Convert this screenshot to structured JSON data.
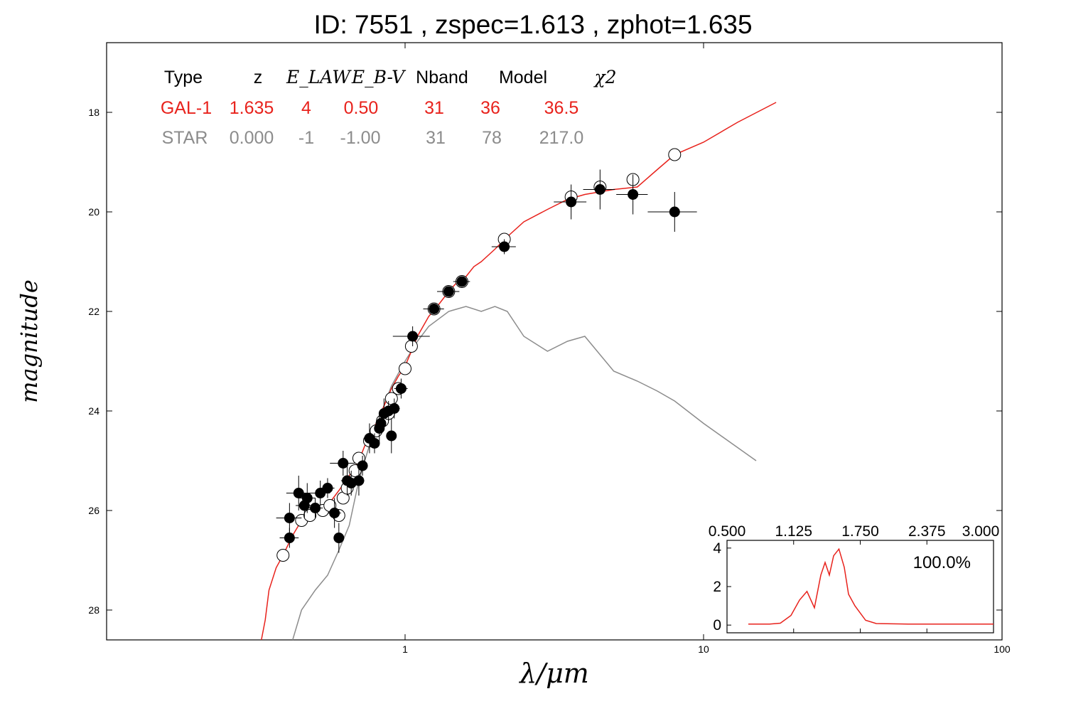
{
  "title": "ID:  7551  , zspec=1.613 , zphot=1.635",
  "colors": {
    "galaxy_model": "#e8221c",
    "star_model": "#8c8c8c",
    "data_point": "#000000",
    "model_point": "#ffffff"
  },
  "chart_data": {
    "type": "scatter",
    "xlabel": "λ/μm",
    "ylabel": "magnitude",
    "xscale": "log",
    "xlim": [
      0.1,
      100
    ],
    "ylim": [
      28.6,
      16.6
    ],
    "y_inverted": true,
    "x_ticks": [
      "1",
      "10",
      "100"
    ],
    "y_ticks": [
      "18",
      "20",
      "22",
      "24",
      "26",
      "28"
    ],
    "grid": false,
    "fit_table": {
      "headers": [
        "Type",
        "z",
        "E_LAW",
        "E_B-V",
        "Nband",
        "Model",
        "χ2"
      ],
      "rows": [
        {
          "name": "GAL-1",
          "color": "#e8221c",
          "cells": [
            "GAL-1",
            "1.635",
            "4",
            "0.50",
            "31",
            "36",
            "36.5"
          ]
        },
        {
          "name": "STAR",
          "color": "#8c8c8c",
          "cells": [
            "STAR",
            "0.000",
            "-1",
            "-1.00",
            "31",
            "78",
            "217.0"
          ]
        }
      ]
    },
    "galaxy_model_curve": [
      [
        0.33,
        28.6
      ],
      [
        0.34,
        28.2
      ],
      [
        0.35,
        27.6
      ],
      [
        0.37,
        27.15
      ],
      [
        0.39,
        26.9
      ],
      [
        0.42,
        26.5
      ],
      [
        0.45,
        26.2
      ],
      [
        0.5,
        26.05
      ],
      [
        0.55,
        25.9
      ],
      [
        0.6,
        25.6
      ],
      [
        0.65,
        25.3
      ],
      [
        0.7,
        25.0
      ],
      [
        0.75,
        24.55
      ],
      [
        0.8,
        24.25
      ],
      [
        0.85,
        23.9
      ],
      [
        0.9,
        23.55
      ],
      [
        0.95,
        23.3
      ],
      [
        1.0,
        23.1
      ],
      [
        1.05,
        22.8
      ],
      [
        1.1,
        22.5
      ],
      [
        1.2,
        22.1
      ],
      [
        1.3,
        21.85
      ],
      [
        1.4,
        21.6
      ],
      [
        1.5,
        21.4
      ],
      [
        1.6,
        21.3
      ],
      [
        1.7,
        21.1
      ],
      [
        1.8,
        21.0
      ],
      [
        2.0,
        20.75
      ],
      [
        2.2,
        20.5
      ],
      [
        2.5,
        20.2
      ],
      [
        3.0,
        19.95
      ],
      [
        3.5,
        19.75
      ],
      [
        4.0,
        19.65
      ],
      [
        5.0,
        19.55
      ],
      [
        6.0,
        19.5
      ],
      [
        7.0,
        19.15
      ],
      [
        8.0,
        18.85
      ],
      [
        10.0,
        18.6
      ],
      [
        13.0,
        18.2
      ],
      [
        17.5,
        17.8
      ]
    ],
    "star_model_curve": [
      [
        0.42,
        28.6
      ],
      [
        0.45,
        28.0
      ],
      [
        0.5,
        27.6
      ],
      [
        0.55,
        27.3
      ],
      [
        0.6,
        26.8
      ],
      [
        0.65,
        26.3
      ],
      [
        0.7,
        25.4
      ],
      [
        0.75,
        24.8
      ],
      [
        0.8,
        24.3
      ],
      [
        0.9,
        23.5
      ],
      [
        1.0,
        23.0
      ],
      [
        1.1,
        22.6
      ],
      [
        1.2,
        22.3
      ],
      [
        1.4,
        22.0
      ],
      [
        1.6,
        21.9
      ],
      [
        1.8,
        22.0
      ],
      [
        2.0,
        21.9
      ],
      [
        2.2,
        22.0
      ],
      [
        2.5,
        22.5
      ],
      [
        3.0,
        22.8
      ],
      [
        3.5,
        22.6
      ],
      [
        4.0,
        22.5
      ],
      [
        5.0,
        23.2
      ],
      [
        6.0,
        23.4
      ],
      [
        7.0,
        23.6
      ],
      [
        8.0,
        23.8
      ],
      [
        10.0,
        24.25
      ],
      [
        15.0,
        25.0
      ]
    ],
    "observed_points": [
      {
        "x": 0.41,
        "y": 26.15,
        "xerr": 0.04,
        "yerr": 0.3
      },
      {
        "x": 0.41,
        "y": 26.55,
        "xerr": 0.03,
        "yerr": 0.2
      },
      {
        "x": 0.44,
        "y": 25.65,
        "xerr": 0.04,
        "yerr": 0.35
      },
      {
        "x": 0.46,
        "y": 25.9,
        "xerr": 0.03,
        "yerr": 0.25
      },
      {
        "x": 0.47,
        "y": 25.75,
        "xerr": 0.03,
        "yerr": 0.3
      },
      {
        "x": 0.5,
        "y": 25.95,
        "xerr": 0.03,
        "yerr": 0.2
      },
      {
        "x": 0.52,
        "y": 25.65,
        "xerr": 0.04,
        "yerr": 0.25
      },
      {
        "x": 0.55,
        "y": 25.55,
        "xerr": 0.03,
        "yerr": 0.2
      },
      {
        "x": 0.58,
        "y": 26.05,
        "xerr": 0.03,
        "yerr": 0.3
      },
      {
        "x": 0.6,
        "y": 26.55,
        "xerr": 0.02,
        "yerr": 0.3
      },
      {
        "x": 0.62,
        "y": 25.05,
        "xerr": 0.06,
        "yerr": 0.25
      },
      {
        "x": 0.64,
        "y": 25.4,
        "xerr": 0.03,
        "yerr": 0.3
      },
      {
        "x": 0.66,
        "y": 25.45,
        "xerr": 0.03,
        "yerr": 0.25
      },
      {
        "x": 0.7,
        "y": 25.4,
        "xerr": 0.03,
        "yerr": 0.3
      },
      {
        "x": 0.72,
        "y": 25.1,
        "xerr": 0.03,
        "yerr": 0.2
      },
      {
        "x": 0.76,
        "y": 24.55,
        "xerr": 0.03,
        "yerr": 0.3
      },
      {
        "x": 0.79,
        "y": 24.65,
        "xerr": 0.03,
        "yerr": 0.2
      },
      {
        "x": 0.82,
        "y": 24.35,
        "xerr": 0.03,
        "yerr": 0.3
      },
      {
        "x": 0.83,
        "y": 24.25,
        "xerr": 0.03,
        "yerr": 0.2
      },
      {
        "x": 0.85,
        "y": 24.05,
        "xerr": 0.03,
        "yerr": 0.3
      },
      {
        "x": 0.88,
        "y": 24.0,
        "xerr": 0.04,
        "yerr": 0.2
      },
      {
        "x": 0.9,
        "y": 24.5,
        "xerr": 0.03,
        "yerr": 0.35
      },
      {
        "x": 0.92,
        "y": 23.95,
        "xerr": 0.04,
        "yerr": 0.2
      },
      {
        "x": 0.97,
        "y": 23.55,
        "xerr": 0.05,
        "yerr": 0.2
      },
      {
        "x": 1.06,
        "y": 22.5,
        "xerr": 0.15,
        "yerr": 0.2
      },
      {
        "x": 1.25,
        "y": 21.95,
        "xerr": 0.1,
        "yerr": 0.1
      },
      {
        "x": 1.4,
        "y": 21.6,
        "xerr": 0.12,
        "yerr": 0.1
      },
      {
        "x": 1.55,
        "y": 21.4,
        "xerr": 0.1,
        "yerr": 0.1
      },
      {
        "x": 2.15,
        "y": 20.7,
        "xerr": 0.2,
        "yerr": 0.15
      },
      {
        "x": 3.6,
        "y": 19.8,
        "xerr": 0.45,
        "yerr": 0.35
      },
      {
        "x": 4.5,
        "y": 19.55,
        "xerr": 0.55,
        "yerr": 0.4
      },
      {
        "x": 5.8,
        "y": 19.65,
        "xerr": 0.7,
        "yerr": 0.4
      },
      {
        "x": 8.0,
        "y": 20.0,
        "xerr": 1.5,
        "yerr": 0.4
      }
    ],
    "model_points": [
      {
        "x": 0.39,
        "y": 26.9
      },
      {
        "x": 0.45,
        "y": 26.2
      },
      {
        "x": 0.48,
        "y": 26.1
      },
      {
        "x": 0.53,
        "y": 26.0
      },
      {
        "x": 0.56,
        "y": 25.9
      },
      {
        "x": 0.6,
        "y": 26.1
      },
      {
        "x": 0.62,
        "y": 25.75
      },
      {
        "x": 0.64,
        "y": 25.55
      },
      {
        "x": 0.68,
        "y": 25.2
      },
      {
        "x": 0.7,
        "y": 24.95
      },
      {
        "x": 0.76,
        "y": 24.6
      },
      {
        "x": 0.8,
        "y": 24.4
      },
      {
        "x": 0.84,
        "y": 24.2
      },
      {
        "x": 0.88,
        "y": 24.05
      },
      {
        "x": 0.9,
        "y": 23.75
      },
      {
        "x": 0.95,
        "y": 23.55
      },
      {
        "x": 1.0,
        "y": 23.15
      },
      {
        "x": 1.05,
        "y": 22.7
      },
      {
        "x": 1.25,
        "y": 21.95
      },
      {
        "x": 1.4,
        "y": 21.6
      },
      {
        "x": 1.55,
        "y": 21.4
      },
      {
        "x": 2.15,
        "y": 20.55
      },
      {
        "x": 3.6,
        "y": 19.7
      },
      {
        "x": 4.5,
        "y": 19.5
      },
      {
        "x": 5.8,
        "y": 19.35
      },
      {
        "x": 8.0,
        "y": 18.85
      }
    ],
    "inset": {
      "type": "line",
      "x_ticks": [
        "0.500",
        "1.125",
        "1.750",
        "2.375",
        "3.000"
      ],
      "xlim": [
        0.5,
        3.0
      ],
      "y_ticks": [
        "0",
        "2",
        "4"
      ],
      "ylim": [
        -0.4,
        4.4
      ],
      "annotation": "100.0%",
      "curve": [
        [
          0.7,
          0.05
        ],
        [
          0.9,
          0.05
        ],
        [
          1.0,
          0.1
        ],
        [
          1.1,
          0.5
        ],
        [
          1.18,
          1.3
        ],
        [
          1.25,
          1.75
        ],
        [
          1.32,
          0.9
        ],
        [
          1.38,
          2.6
        ],
        [
          1.42,
          3.25
        ],
        [
          1.46,
          2.6
        ],
        [
          1.5,
          3.6
        ],
        [
          1.55,
          3.95
        ],
        [
          1.6,
          3.0
        ],
        [
          1.64,
          1.6
        ],
        [
          1.7,
          1.0
        ],
        [
          1.8,
          0.25
        ],
        [
          1.9,
          0.08
        ],
        [
          2.2,
          0.05
        ],
        [
          3.0,
          0.05
        ]
      ]
    }
  }
}
